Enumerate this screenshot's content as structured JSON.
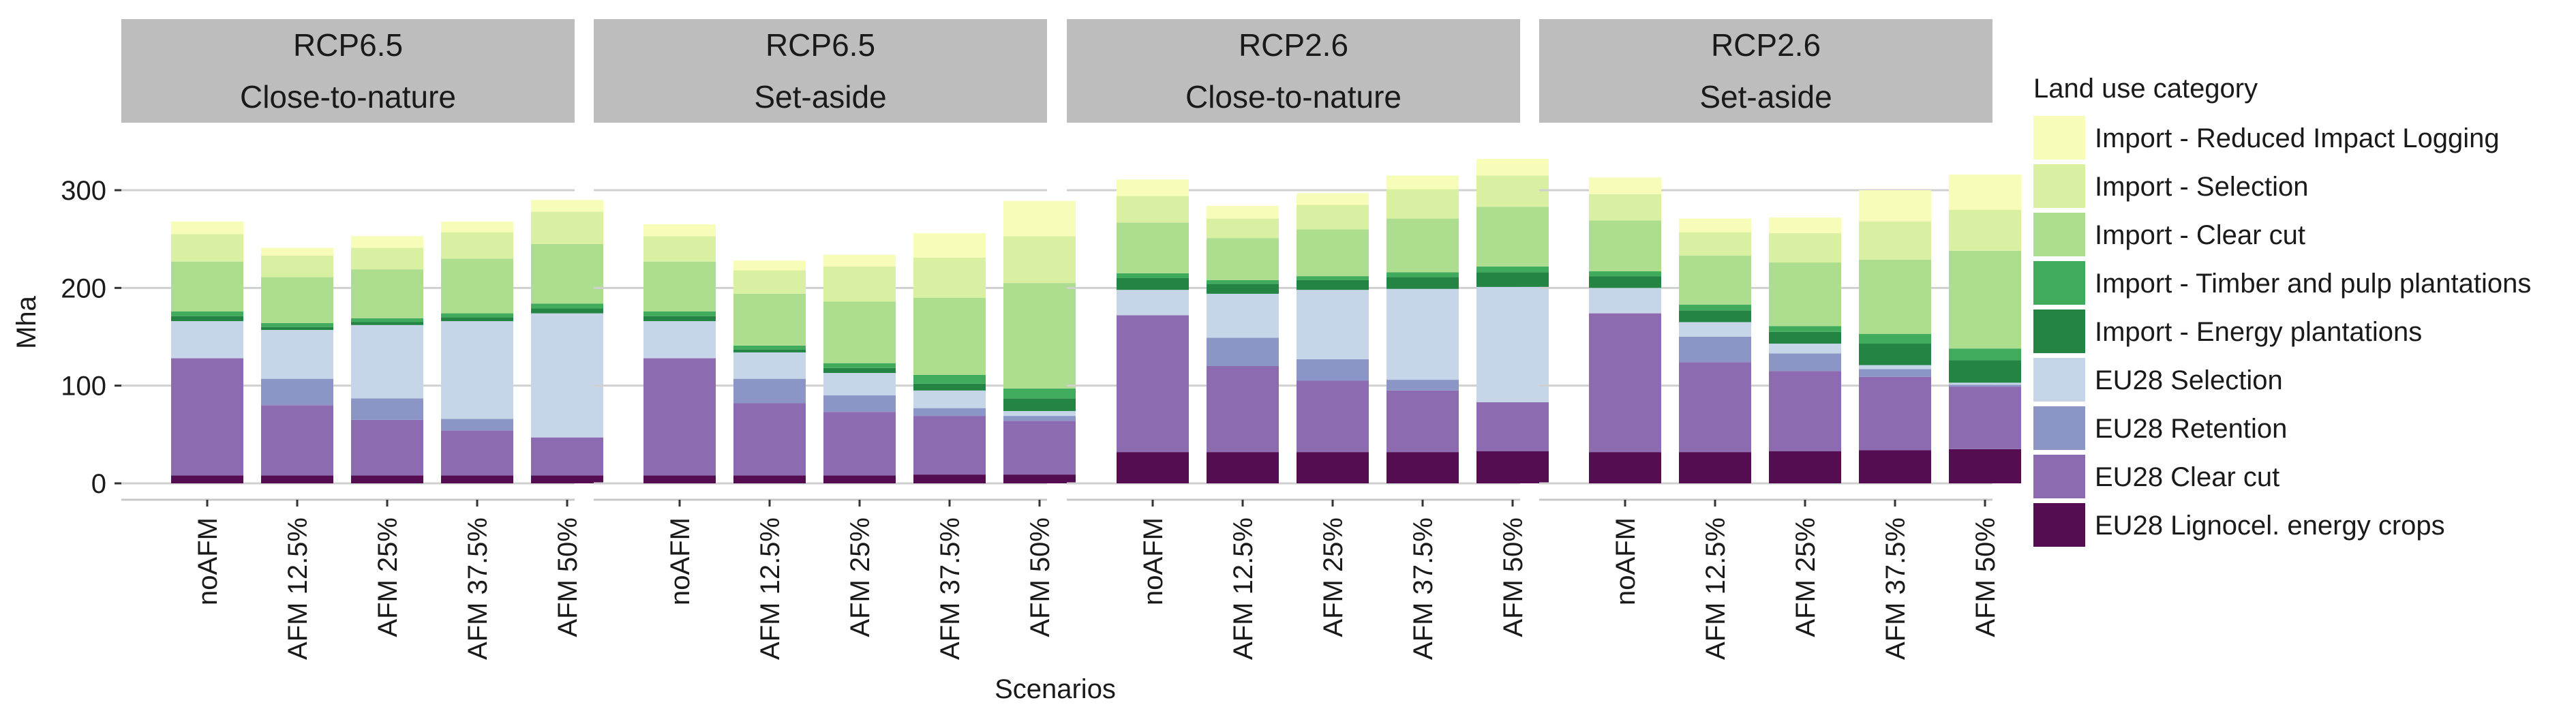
{
  "chart_data": {
    "type": "bar",
    "stacked": true,
    "ylabel": "Mha",
    "xlabel": "Scenarios",
    "ylim": [
      0,
      335
    ],
    "yticks": [
      0,
      100,
      200,
      300
    ],
    "grid": true,
    "legend_placement": "right",
    "legend_title": "Land use category",
    "categories": [
      "noAFM",
      "AFM 12.5%",
      "AFM 25%",
      "AFM 37.5%",
      "AFM 50%"
    ],
    "series": [
      {
        "name": "EU28 Lignocel. energy crops",
        "color": "#540d50"
      },
      {
        "name": "EU28 Clear cut",
        "color": "#8c6bb1"
      },
      {
        "name": "EU28 Retention",
        "color": "#8c96c6"
      },
      {
        "name": "EU28 Selection",
        "color": "#c6d6e8"
      },
      {
        "name": "Import - Energy plantations",
        "color": "#238443"
      },
      {
        "name": "Import - Timber and pulp plantations",
        "color": "#41ab5d"
      },
      {
        "name": "Import - Clear cut",
        "color": "#addd8e"
      },
      {
        "name": "Import - Selection",
        "color": "#d9f0a3"
      },
      {
        "name": "Import - Reduced Impact Logging",
        "color": "#f7fcb9"
      }
    ],
    "legend_order": [
      8,
      7,
      6,
      5,
      4,
      3,
      2,
      1,
      0
    ],
    "panels": [
      {
        "title_line1": "RCP6.5",
        "title_line2": "Close-to-nature",
        "values": [
          [
            8,
            120,
            0,
            38,
            5,
            5,
            51,
            28,
            13
          ],
          [
            8,
            72,
            27,
            50,
            3,
            4,
            47,
            22,
            8
          ],
          [
            8,
            57,
            22,
            75,
            3,
            4,
            50,
            22,
            12
          ],
          [
            8,
            46,
            12,
            100,
            4,
            4,
            56,
            27,
            11
          ],
          [
            8,
            39,
            0,
            127,
            5,
            5,
            61,
            33,
            12
          ]
        ]
      },
      {
        "title_line1": "RCP6.5",
        "title_line2": "Set-aside",
        "values": [
          [
            8,
            120,
            0,
            38,
            5,
            5,
            51,
            26,
            12
          ],
          [
            8,
            74,
            25,
            27,
            3,
            4,
            53,
            24,
            10
          ],
          [
            8,
            65,
            17,
            23,
            5,
            5,
            63,
            36,
            12
          ],
          [
            9,
            60,
            8,
            18,
            7,
            9,
            79,
            41,
            25
          ],
          [
            9,
            55,
            5,
            5,
            13,
            10,
            108,
            48,
            36
          ]
        ]
      },
      {
        "title_line1": "RCP2.6",
        "title_line2": "Close-to-nature",
        "values": [
          [
            32,
            140,
            0,
            26,
            12,
            5,
            52,
            27,
            17
          ],
          [
            32,
            88,
            29,
            45,
            10,
            4,
            43,
            20,
            13
          ],
          [
            32,
            73,
            22,
            71,
            10,
            4,
            48,
            25,
            12
          ],
          [
            32,
            63,
            11,
            93,
            12,
            5,
            55,
            30,
            14
          ],
          [
            33,
            50,
            0,
            118,
            15,
            6,
            61,
            32,
            17
          ]
        ]
      },
      {
        "title_line1": "RCP2.6",
        "title_line2": "Set-aside",
        "values": [
          [
            32,
            142,
            0,
            26,
            12,
            5,
            52,
            27,
            17
          ],
          [
            32,
            92,
            26,
            15,
            12,
            6,
            50,
            24,
            14
          ],
          [
            33,
            82,
            18,
            10,
            12,
            6,
            65,
            30,
            16
          ],
          [
            34,
            75,
            8,
            4,
            22,
            10,
            76,
            39,
            32
          ],
          [
            35,
            64,
            2,
            2,
            23,
            12,
            100,
            42,
            36
          ]
        ]
      }
    ]
  }
}
